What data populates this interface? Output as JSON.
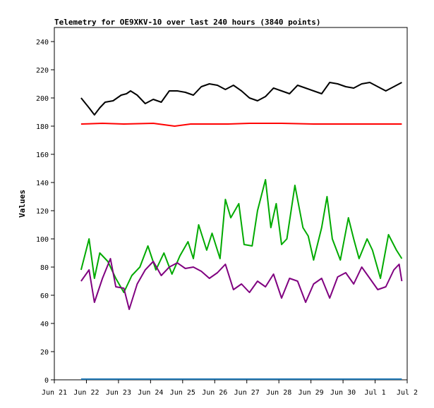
{
  "chart_data": {
    "type": "line",
    "title": "Telemetry for OE9XKV-10 over last 240 hours (3840 points)",
    "xlabel": "",
    "ylabel": "Values",
    "ylim": [
      0,
      250
    ],
    "yticks": [
      0,
      20,
      40,
      60,
      80,
      100,
      120,
      140,
      160,
      180,
      200,
      220,
      240
    ],
    "xlim": [
      "2025-06-21T00:00",
      "2025-07-02T00:00"
    ],
    "xticks": [
      {
        "date": "2025-06-21",
        "label": "Jun 21"
      },
      {
        "date": "2025-06-22",
        "label": "Jun 22"
      },
      {
        "date": "2025-06-23",
        "label": "Jun 23"
      },
      {
        "date": "2025-06-24",
        "label": "Jun 24"
      },
      {
        "date": "2025-06-25",
        "label": "Jun 25"
      },
      {
        "date": "2025-06-26",
        "label": "Jun 26"
      },
      {
        "date": "2025-06-27",
        "label": "Jun 27"
      },
      {
        "date": "2025-06-28",
        "label": "Jun 28"
      },
      {
        "date": "2025-06-29",
        "label": "Jun 29"
      },
      {
        "date": "2025-06-30",
        "label": "Jun 30"
      },
      {
        "date": "2025-07-01",
        "label": "Jul 1"
      },
      {
        "date": "2025-07-02",
        "label": "Jul 2"
      }
    ],
    "grid": false,
    "legend": "none",
    "series": [
      {
        "color": "#000000",
        "points": [
          [
            "2025-06-21T20:00",
            200
          ],
          [
            "2025-06-22T02:00",
            193
          ],
          [
            "2025-06-22T06:00",
            188
          ],
          [
            "2025-06-22T10:00",
            193
          ],
          [
            "2025-06-22T14:00",
            197
          ],
          [
            "2025-06-22T20:00",
            198
          ],
          [
            "2025-06-23T02:00",
            202
          ],
          [
            "2025-06-23T06:00",
            203
          ],
          [
            "2025-06-23T09:00",
            205
          ],
          [
            "2025-06-23T14:00",
            202
          ],
          [
            "2025-06-23T20:00",
            196
          ],
          [
            "2025-06-24T02:00",
            199
          ],
          [
            "2025-06-24T08:00",
            197
          ],
          [
            "2025-06-24T14:00",
            205
          ],
          [
            "2025-06-24T20:00",
            205
          ],
          [
            "2025-06-25T02:00",
            204
          ],
          [
            "2025-06-25T08:00",
            202
          ],
          [
            "2025-06-25T14:00",
            208
          ],
          [
            "2025-06-25T20:00",
            210
          ],
          [
            "2025-06-26T02:00",
            209
          ],
          [
            "2025-06-26T08:00",
            206
          ],
          [
            "2025-06-26T14:00",
            209
          ],
          [
            "2025-06-26T20:00",
            205
          ],
          [
            "2025-06-27T02:00",
            200
          ],
          [
            "2025-06-27T08:00",
            198
          ],
          [
            "2025-06-27T14:00",
            201
          ],
          [
            "2025-06-27T20:00",
            207
          ],
          [
            "2025-06-28T02:00",
            205
          ],
          [
            "2025-06-28T08:00",
            203
          ],
          [
            "2025-06-28T14:00",
            209
          ],
          [
            "2025-06-28T20:00",
            207
          ],
          [
            "2025-06-29T02:00",
            205
          ],
          [
            "2025-06-29T08:00",
            203
          ],
          [
            "2025-06-29T14:00",
            211
          ],
          [
            "2025-06-29T20:00",
            210
          ],
          [
            "2025-06-30T02:00",
            208
          ],
          [
            "2025-06-30T08:00",
            207
          ],
          [
            "2025-06-30T14:00",
            210
          ],
          [
            "2025-06-30T20:00",
            211
          ],
          [
            "2025-07-01T02:00",
            208
          ],
          [
            "2025-07-01T08:00",
            205
          ],
          [
            "2025-07-01T14:00",
            208
          ],
          [
            "2025-07-01T20:00",
            211
          ]
        ]
      },
      {
        "color": "#ff0000",
        "points": [
          [
            "2025-06-21T20:00",
            181.5
          ],
          [
            "2025-06-22T12:00",
            182
          ],
          [
            "2025-06-23T04:00",
            181.5
          ],
          [
            "2025-06-24T02:00",
            182
          ],
          [
            "2025-06-24T18:00",
            180
          ],
          [
            "2025-06-25T06:00",
            181.5
          ],
          [
            "2025-06-26T10:00",
            181.5
          ],
          [
            "2025-06-27T02:00",
            182
          ],
          [
            "2025-06-28T02:00",
            182
          ],
          [
            "2025-06-29T02:00",
            181.5
          ],
          [
            "2025-06-30T02:00",
            181.5
          ],
          [
            "2025-07-01T02:00",
            181.5
          ],
          [
            "2025-07-01T20:00",
            181.5
          ]
        ]
      },
      {
        "color": "#00aa00",
        "points": [
          [
            "2025-06-21T20:00",
            78
          ],
          [
            "2025-06-22T02:00",
            100
          ],
          [
            "2025-06-22T06:00",
            72
          ],
          [
            "2025-06-22T10:00",
            90
          ],
          [
            "2025-06-22T16:00",
            84
          ],
          [
            "2025-06-22T22:00",
            72
          ],
          [
            "2025-06-23T04:00",
            62
          ],
          [
            "2025-06-23T10:00",
            74
          ],
          [
            "2025-06-23T16:00",
            80
          ],
          [
            "2025-06-23T22:00",
            95
          ],
          [
            "2025-06-24T04:00",
            78
          ],
          [
            "2025-06-24T10:00",
            90
          ],
          [
            "2025-06-24T16:00",
            75
          ],
          [
            "2025-06-24T22:00",
            88
          ],
          [
            "2025-06-25T04:00",
            98
          ],
          [
            "2025-06-25T08:00",
            86
          ],
          [
            "2025-06-25T12:00",
            110
          ],
          [
            "2025-06-25T18:00",
            92
          ],
          [
            "2025-06-25T22:00",
            104
          ],
          [
            "2025-06-26T04:00",
            86
          ],
          [
            "2025-06-26T08:00",
            128
          ],
          [
            "2025-06-26T12:00",
            115
          ],
          [
            "2025-06-26T18:00",
            125
          ],
          [
            "2025-06-26T22:00",
            96
          ],
          [
            "2025-06-27T04:00",
            95
          ],
          [
            "2025-06-27T08:00",
            120
          ],
          [
            "2025-06-27T14:00",
            142
          ],
          [
            "2025-06-27T18:00",
            108
          ],
          [
            "2025-06-27T22:00",
            125
          ],
          [
            "2025-06-28T02:00",
            96
          ],
          [
            "2025-06-28T06:00",
            100
          ],
          [
            "2025-06-28T12:00",
            138
          ],
          [
            "2025-06-28T18:00",
            108
          ],
          [
            "2025-06-28T22:00",
            102
          ],
          [
            "2025-06-29T02:00",
            85
          ],
          [
            "2025-06-29T08:00",
            108
          ],
          [
            "2025-06-29T12:00",
            130
          ],
          [
            "2025-06-29T16:00",
            100
          ],
          [
            "2025-06-29T22:00",
            85
          ],
          [
            "2025-06-30T04:00",
            115
          ],
          [
            "2025-06-30T08:00",
            100
          ],
          [
            "2025-06-30T12:00",
            86
          ],
          [
            "2025-06-30T18:00",
            100
          ],
          [
            "2025-06-30T22:00",
            92
          ],
          [
            "2025-07-01T04:00",
            72
          ],
          [
            "2025-07-01T10:00",
            103
          ],
          [
            "2025-07-01T16:00",
            92
          ],
          [
            "2025-07-01T20:00",
            86
          ]
        ]
      },
      {
        "color": "#800080",
        "points": [
          [
            "2025-06-21T20:00",
            70
          ],
          [
            "2025-06-22T02:00",
            78
          ],
          [
            "2025-06-22T06:00",
            55
          ],
          [
            "2025-06-22T12:00",
            72
          ],
          [
            "2025-06-22T18:00",
            86
          ],
          [
            "2025-06-22T22:00",
            66
          ],
          [
            "2025-06-23T04:00",
            65
          ],
          [
            "2025-06-23T08:00",
            50
          ],
          [
            "2025-06-23T14:00",
            68
          ],
          [
            "2025-06-23T20:00",
            78
          ],
          [
            "2025-06-24T02:00",
            84
          ],
          [
            "2025-06-24T08:00",
            74
          ],
          [
            "2025-06-24T14:00",
            80
          ],
          [
            "2025-06-24T20:00",
            83
          ],
          [
            "2025-06-25T02:00",
            79
          ],
          [
            "2025-06-25T08:00",
            80
          ],
          [
            "2025-06-25T14:00",
            77
          ],
          [
            "2025-06-25T20:00",
            72
          ],
          [
            "2025-06-26T02:00",
            76
          ],
          [
            "2025-06-26T08:00",
            82
          ],
          [
            "2025-06-26T14:00",
            64
          ],
          [
            "2025-06-26T20:00",
            68
          ],
          [
            "2025-06-27T02:00",
            62
          ],
          [
            "2025-06-27T08:00",
            70
          ],
          [
            "2025-06-27T14:00",
            66
          ],
          [
            "2025-06-27T20:00",
            75
          ],
          [
            "2025-06-28T02:00",
            58
          ],
          [
            "2025-06-28T08:00",
            72
          ],
          [
            "2025-06-28T14:00",
            70
          ],
          [
            "2025-06-28T20:00",
            55
          ],
          [
            "2025-06-29T02:00",
            68
          ],
          [
            "2025-06-29T08:00",
            72
          ],
          [
            "2025-06-29T14:00",
            58
          ],
          [
            "2025-06-29T20:00",
            73
          ],
          [
            "2025-06-30T02:00",
            76
          ],
          [
            "2025-06-30T08:00",
            68
          ],
          [
            "2025-06-30T14:00",
            80
          ],
          [
            "2025-06-30T20:00",
            72
          ],
          [
            "2025-07-01T02:00",
            64
          ],
          [
            "2025-07-01T08:00",
            66
          ],
          [
            "2025-07-01T14:00",
            78
          ],
          [
            "2025-07-01T18:00",
            82
          ],
          [
            "2025-07-01T20:00",
            70
          ]
        ]
      },
      {
        "color": "#1f77b4",
        "points": [
          [
            "2025-06-21T20:00",
            0.5
          ],
          [
            "2025-07-01T20:00",
            0.5
          ]
        ]
      }
    ]
  }
}
